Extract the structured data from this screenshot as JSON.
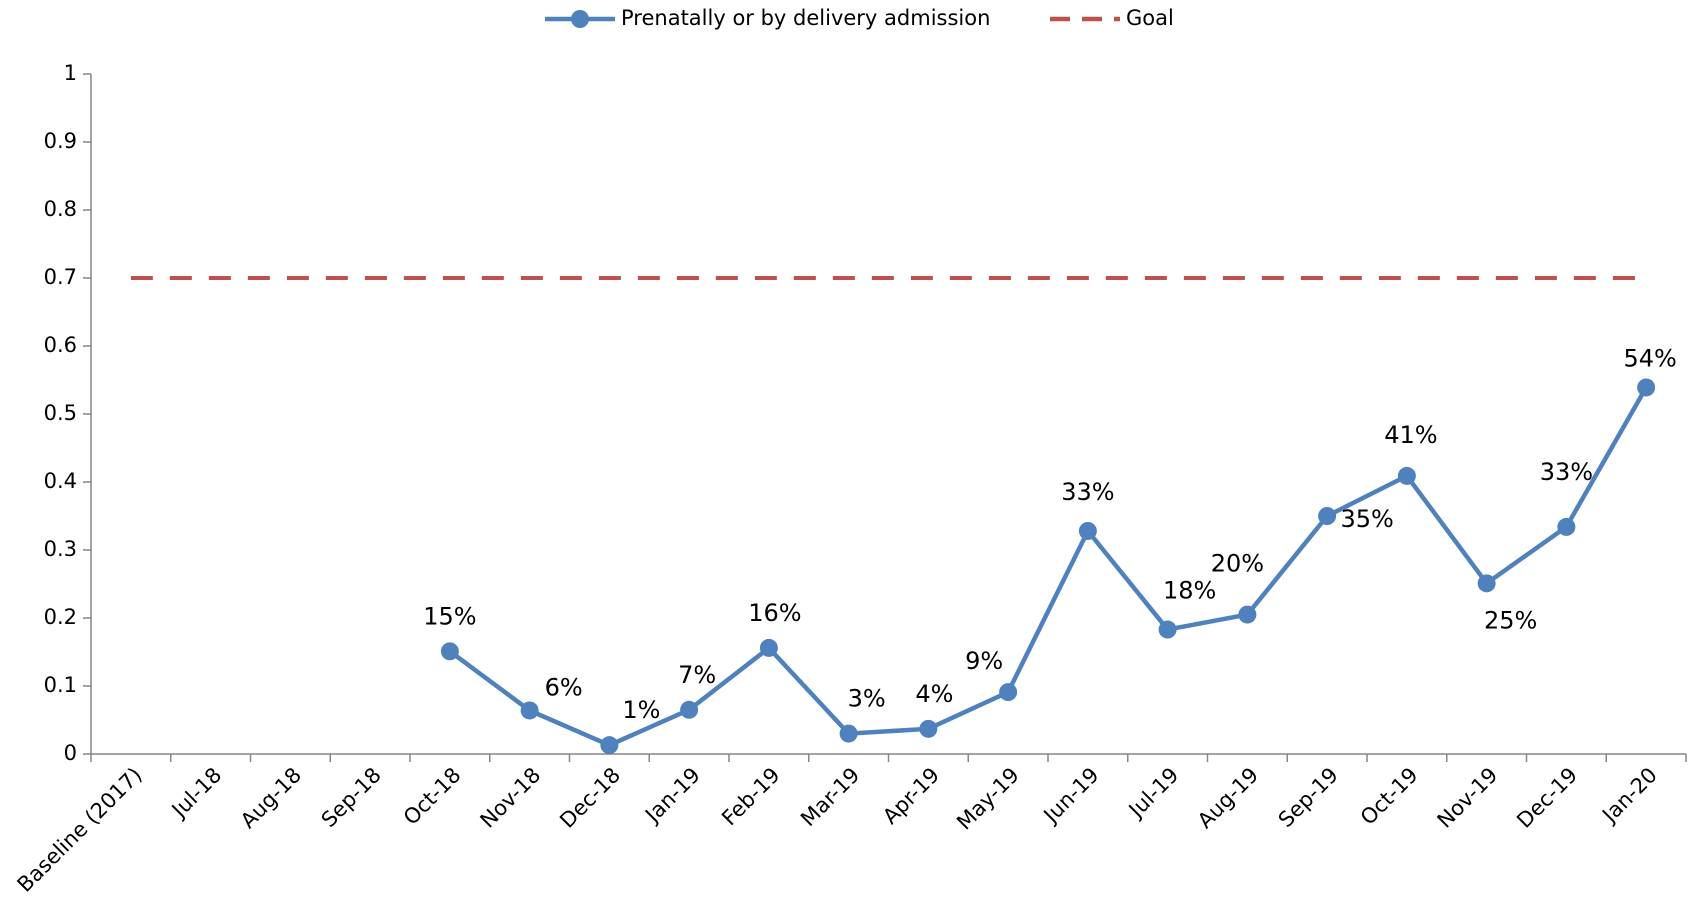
{
  "chart_data": {
    "type": "line",
    "categories": [
      "Baseline (2017)",
      "Jul-18",
      "Aug-18",
      "Sep-18",
      "Oct-18",
      "Nov-18",
      "Dec-18",
      "Jan-19",
      "Feb-19",
      "Mar-19",
      "Apr-19",
      "May-19",
      "Jun-19",
      "Jul-19",
      "Aug-19",
      "Sep-19",
      "Oct-19",
      "Nov-19",
      "Dec-19",
      "Jan-20"
    ],
    "series": [
      {
        "name": "Prenatally or by delivery admission",
        "color": "#4f81bd",
        "markers": true,
        "values": [
          null,
          null,
          null,
          null,
          0.151,
          0.064,
          0.013,
          0.065,
          0.156,
          0.03,
          0.037,
          0.091,
          0.328,
          0.183,
          0.205,
          0.35,
          0.409,
          0.251,
          0.334,
          0.539
        ],
        "value_labels": [
          null,
          null,
          null,
          null,
          "15%",
          "6%",
          "1%",
          "7%",
          "16%",
          "3%",
          "4%",
          "9%",
          "33%",
          "18%",
          "20%",
          "35%",
          "41%",
          "25%",
          "33%",
          "54%"
        ]
      },
      {
        "name": "Goal",
        "color": "#c0504d",
        "dashed": true,
        "values": [
          0.7,
          0.7,
          0.7,
          0.7,
          0.7,
          0.7,
          0.7,
          0.7,
          0.7,
          0.7,
          0.7,
          0.7,
          0.7,
          0.7,
          0.7,
          0.7,
          0.7,
          0.7,
          0.7,
          0.7
        ]
      }
    ],
    "ylim": [
      0,
      1
    ],
    "yticks": [
      0,
      0.1,
      0.2,
      0.3,
      0.4,
      0.5,
      0.6,
      0.7,
      0.8,
      0.9,
      1
    ],
    "grid": false,
    "legend": "top"
  }
}
